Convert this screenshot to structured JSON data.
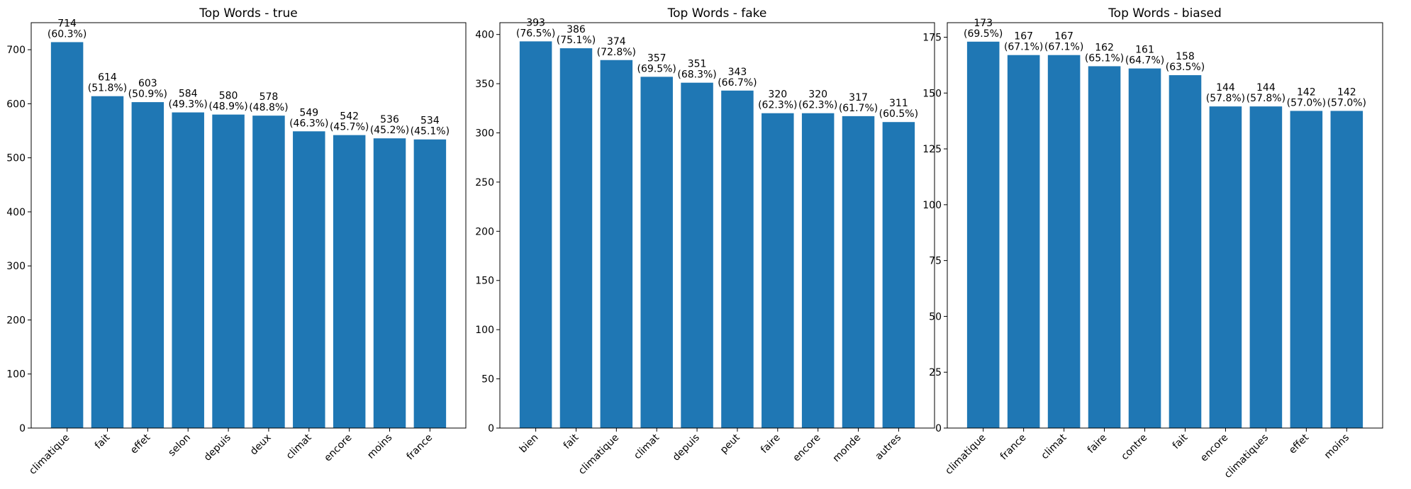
{
  "chart_data": [
    {
      "type": "bar",
      "title": "Top Words - true",
      "categories": [
        "climatique",
        "fait",
        "effet",
        "selon",
        "depuis",
        "deux",
        "climat",
        "encore",
        "moins",
        "france"
      ],
      "values": [
        714,
        614,
        603,
        584,
        580,
        578,
        549,
        542,
        536,
        534
      ],
      "labels": [
        "714\n(60.3%)",
        "614\n(51.8%)",
        "603\n(50.9%)",
        "584\n(49.3%)",
        "580\n(48.9%)",
        "578\n(48.8%)",
        "549\n(46.3%)",
        "542\n(45.7%)",
        "536\n(45.2%)",
        "534\n(45.1%)"
      ],
      "yticks": [
        0,
        100,
        200,
        300,
        400,
        500,
        600,
        700
      ],
      "ylim": [
        0,
        750
      ],
      "color": "#1f77b4",
      "grid": false
    },
    {
      "type": "bar",
      "title": "Top Words - fake",
      "categories": [
        "bien",
        "fait",
        "climatique",
        "climat",
        "depuis",
        "peut",
        "faire",
        "encore",
        "monde",
        "autres"
      ],
      "values": [
        393,
        386,
        374,
        357,
        351,
        343,
        320,
        320,
        317,
        311
      ],
      "labels": [
        "393\n(76.5%)",
        "386\n(75.1%)",
        "374\n(72.8%)",
        "357\n(69.5%)",
        "351\n(68.3%)",
        "343\n(66.7%)",
        "320\n(62.3%)",
        "320\n(62.3%)",
        "317\n(61.7%)",
        "311\n(60.5%)"
      ],
      "yticks": [
        0,
        50,
        100,
        150,
        200,
        250,
        300,
        350,
        400
      ],
      "ylim": [
        0,
        412
      ],
      "color": "#1f77b4",
      "grid": false
    },
    {
      "type": "bar",
      "title": "Top Words - biased",
      "categories": [
        "climatique",
        "france",
        "climat",
        "faire",
        "contre",
        "fait",
        "encore",
        "climatiques",
        "effet",
        "moins"
      ],
      "values": [
        173,
        167,
        167,
        162,
        161,
        158,
        144,
        144,
        142,
        142
      ],
      "labels": [
        "173\n(69.5%)",
        "167\n(67.1%)",
        "167\n(67.1%)",
        "162\n(65.1%)",
        "161\n(64.7%)",
        "158\n(63.5%)",
        "144\n(57.8%)",
        "144\n(57.8%)",
        "142\n(57.0%)",
        "142\n(57.0%)"
      ],
      "yticks": [
        0,
        25,
        50,
        75,
        100,
        125,
        150,
        175
      ],
      "ylim": [
        0,
        181.5
      ],
      "color": "#1f77b4",
      "grid": false
    }
  ]
}
